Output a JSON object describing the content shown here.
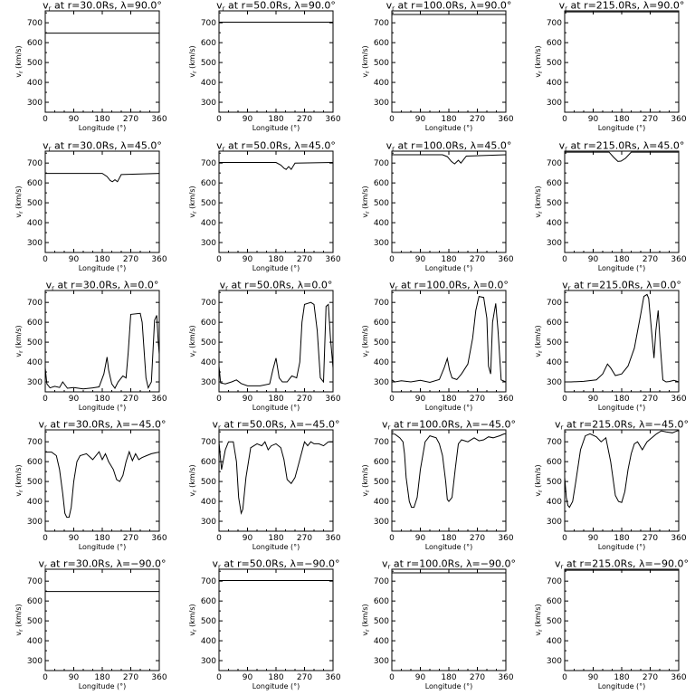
{
  "figure": {
    "columns": [
      {
        "r": "30.0Rs"
      },
      {
        "r": "50.0Rs"
      },
      {
        "r": "100.0Rs"
      },
      {
        "r": "215.0Rs"
      }
    ],
    "rows": [
      {
        "lat": "90.0°"
      },
      {
        "lat": "45.0°"
      },
      {
        "lat": "0.0°"
      },
      {
        "lat": "−45.0°"
      },
      {
        "lat": "−90.0°"
      }
    ]
  },
  "chart_data": {
    "type": "line",
    "layout": "grid 5 rows (latitude) x 4 columns (radius)",
    "title_template": "v_r at r={r}, λ={lat}",
    "xlabel": "Longitude (°)",
    "ylabel": "v_r (km/s)",
    "xlim": [
      0,
      360
    ],
    "ylim": [
      250,
      760
    ],
    "xticks": [
      0,
      90,
      180,
      270,
      360
    ],
    "yticks": [
      300,
      400,
      500,
      600,
      700
    ],
    "line_color": "#000000",
    "panels": [
      {
        "r": "30.0Rs",
        "lat": "90.0°",
        "x": [
          0,
          360
        ],
        "y": [
          648,
          648
        ]
      },
      {
        "r": "50.0Rs",
        "lat": "90.0°",
        "x": [
          0,
          360
        ],
        "y": [
          703,
          703
        ]
      },
      {
        "r": "100.0Rs",
        "lat": "90.0°",
        "x": [
          0,
          360
        ],
        "y": [
          742,
          742
        ]
      },
      {
        "r": "215.0Rs",
        "lat": "90.0°",
        "x": [
          0,
          360
        ],
        "y": [
          755,
          755
        ]
      },
      {
        "r": "30.0Rs",
        "lat": "45.0°",
        "x": [
          0,
          180,
          195,
          205,
          212,
          220,
          228,
          240,
          360
        ],
        "y": [
          648,
          648,
          632,
          612,
          606,
          616,
          606,
          642,
          648
        ]
      },
      {
        "r": "50.0Rs",
        "lat": "45.0°",
        "x": [
          0,
          180,
          195,
          205,
          212,
          220,
          228,
          240,
          360
        ],
        "y": [
          703,
          703,
          690,
          674,
          668,
          682,
          668,
          700,
          703
        ]
      },
      {
        "r": "100.0Rs",
        "lat": "45.0°",
        "x": [
          0,
          160,
          175,
          188,
          198,
          210,
          218,
          235,
          360
        ],
        "y": [
          742,
          742,
          732,
          708,
          696,
          714,
          700,
          735,
          742
        ]
      },
      {
        "r": "215.0Rs",
        "lat": "45.0°",
        "x": [
          0,
          140,
          155,
          168,
          178,
          192,
          210,
          360
        ],
        "y": [
          755,
          755,
          728,
          708,
          710,
          724,
          755,
          755
        ]
      },
      {
        "r": "30.0Rs",
        "lat": "0.0°",
        "x": [
          0,
          5,
          15,
          30,
          45,
          55,
          70,
          90,
          120,
          150,
          170,
          185,
          195,
          200,
          210,
          220,
          230,
          245,
          255,
          262,
          270,
          300,
          306,
          312,
          318,
          325,
          335,
          345,
          352,
          357,
          360
        ],
        "y": [
          370,
          290,
          270,
          278,
          272,
          300,
          268,
          272,
          265,
          270,
          275,
          340,
          425,
          360,
          290,
          268,
          300,
          330,
          320,
          450,
          640,
          645,
          600,
          460,
          320,
          270,
          300,
          610,
          635,
          500,
          440
        ]
      },
      {
        "r": "50.0Rs",
        "lat": "0.0°",
        "x": [
          0,
          5,
          20,
          40,
          55,
          70,
          90,
          130,
          160,
          170,
          180,
          190,
          200,
          215,
          230,
          245,
          255,
          262,
          270,
          290,
          300,
          310,
          320,
          330,
          338,
          345,
          352,
          360
        ],
        "y": [
          380,
          295,
          290,
          300,
          310,
          292,
          280,
          280,
          290,
          360,
          420,
          320,
          300,
          300,
          330,
          320,
          400,
          600,
          690,
          700,
          690,
          560,
          320,
          300,
          680,
          690,
          520,
          370
        ]
      },
      {
        "r": "100.0Rs",
        "lat": "0.0°",
        "x": [
          0,
          10,
          30,
          60,
          90,
          120,
          150,
          165,
          175,
          182,
          190,
          205,
          220,
          240,
          255,
          265,
          275,
          290,
          300,
          305,
          312,
          318,
          328,
          335,
          345,
          360
        ],
        "y": [
          310,
          300,
          306,
          300,
          308,
          298,
          312,
          370,
          418,
          360,
          320,
          312,
          340,
          390,
          520,
          660,
          730,
          725,
          620,
          380,
          340,
          600,
          695,
          560,
          310,
          300
        ]
      },
      {
        "r": "215.0Rs",
        "lat": "0.0°",
        "x": [
          0,
          20,
          60,
          100,
          120,
          135,
          145,
          160,
          180,
          200,
          220,
          240,
          250,
          260,
          265,
          275,
          282,
          288,
          295,
          302,
          310,
          320,
          330,
          345,
          360
        ],
        "y": [
          300,
          300,
          303,
          310,
          340,
          390,
          370,
          332,
          340,
          380,
          470,
          640,
          730,
          740,
          720,
          540,
          420,
          560,
          660,
          480,
          310,
          300,
          302,
          308,
          300
        ]
      },
      {
        "r": "30.0Rs",
        "lat": "−45.0°",
        "x": [
          0,
          20,
          35,
          45,
          55,
          62,
          68,
          75,
          82,
          90,
          100,
          110,
          130,
          150,
          170,
          180,
          190,
          200,
          215,
          225,
          235,
          245,
          255,
          265,
          275,
          285,
          295,
          305,
          320,
          335,
          350,
          360
        ],
        "y": [
          648,
          648,
          630,
          560,
          440,
          340,
          320,
          320,
          370,
          500,
          600,
          630,
          640,
          610,
          650,
          610,
          640,
          600,
          560,
          510,
          500,
          530,
          600,
          650,
          605,
          640,
          610,
          620,
          630,
          640,
          645,
          648
        ]
      },
      {
        "r": "50.0Rs",
        "lat": "−45.0°",
        "x": [
          0,
          8,
          20,
          30,
          45,
          55,
          62,
          70,
          75,
          85,
          100,
          120,
          135,
          145,
          155,
          165,
          180,
          195,
          205,
          215,
          228,
          240,
          255,
          270,
          280,
          290,
          300,
          315,
          330,
          345,
          360
        ],
        "y": [
          700,
          560,
          660,
          700,
          700,
          600,
          420,
          340,
          360,
          520,
          670,
          690,
          680,
          700,
          660,
          680,
          690,
          670,
          610,
          510,
          490,
          520,
          610,
          700,
          680,
          700,
          690,
          690,
          680,
          700,
          700
        ]
      },
      {
        "r": "100.0Rs",
        "lat": "−45.0°",
        "x": [
          0,
          10,
          25,
          35,
          40,
          45,
          55,
          62,
          70,
          80,
          90,
          105,
          120,
          140,
          150,
          160,
          170,
          175,
          180,
          190,
          200,
          210,
          220,
          240,
          260,
          275,
          290,
          305,
          320,
          340,
          355,
          360
        ],
        "y": [
          740,
          738,
          720,
          700,
          640,
          520,
          400,
          370,
          370,
          420,
          560,
          700,
          730,
          720,
          690,
          630,
          500,
          410,
          400,
          420,
          560,
          690,
          710,
          700,
          720,
          705,
          710,
          725,
          720,
          730,
          740,
          740
        ]
      },
      {
        "r": "215.0Rs",
        "lat": "−45.0°",
        "x": [
          0,
          5,
          10,
          15,
          25,
          35,
          50,
          65,
          80,
          100,
          115,
          130,
          145,
          160,
          170,
          180,
          190,
          200,
          210,
          220,
          230,
          245,
          260,
          275,
          290,
          305,
          320,
          340,
          355,
          360
        ],
        "y": [
          520,
          420,
          380,
          370,
          400,
          500,
          660,
          730,
          740,
          725,
          700,
          720,
          600,
          430,
          400,
          395,
          450,
          560,
          640,
          690,
          700,
          660,
          700,
          720,
          740,
          755,
          750,
          745,
          755,
          755
        ]
      },
      {
        "r": "30.0Rs",
        "lat": "−90.0°",
        "x": [
          0,
          360
        ],
        "y": [
          648,
          648
        ]
      },
      {
        "r": "50.0Rs",
        "lat": "−90.0°",
        "x": [
          0,
          360
        ],
        "y": [
          703,
          703
        ]
      },
      {
        "r": "100.0Rs",
        "lat": "−90.0°",
        "x": [
          0,
          360
        ],
        "y": [
          742,
          742
        ]
      },
      {
        "r": "215.0Rs",
        "lat": "−90.0°",
        "x": [
          0,
          360
        ],
        "y": [
          755,
          755
        ]
      }
    ]
  }
}
